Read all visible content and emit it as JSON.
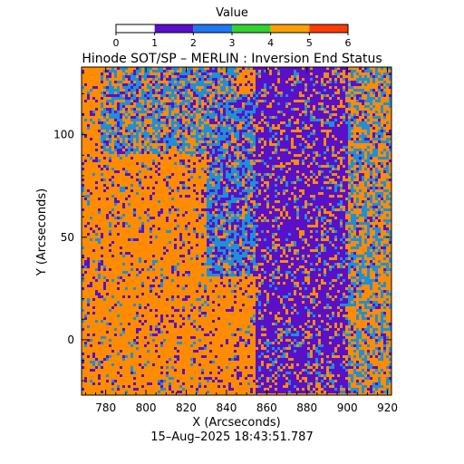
{
  "chart_data": {
    "type": "heatmap",
    "title": "Hinode SOT/SP – MERLIN : Inversion End Status",
    "xlabel": "X (Arcseconds)",
    "ylabel": "Y (Arcseconds)",
    "footer": "15–Aug–2025 18:43:51.787",
    "colorbar": {
      "title": "Value",
      "range": [
        0,
        6
      ],
      "ticks": [
        0,
        1,
        2,
        3,
        4,
        5,
        6
      ],
      "tick_labels": [
        "0",
        "1",
        "2",
        "3",
        "4",
        "5",
        "6"
      ],
      "bands": [
        {
          "from": 0,
          "to": 1,
          "color": "#ffffff"
        },
        {
          "from": 1,
          "to": 2,
          "color": "#5a10c8"
        },
        {
          "from": 2,
          "to": 3,
          "color": "#1e78f0"
        },
        {
          "from": 3,
          "to": 4,
          "color": "#32d232"
        },
        {
          "from": 4,
          "to": 5,
          "color": "#ffa000"
        },
        {
          "from": 5,
          "to": 6,
          "color": "#ff3c00"
        }
      ]
    },
    "xlim": [
      768,
      922
    ],
    "ylim": [
      -27,
      133
    ],
    "x_ticks": [
      780,
      800,
      820,
      840,
      860,
      880,
      900,
      920
    ],
    "x_tick_labels": [
      "780",
      "800",
      "820",
      "840",
      "860",
      "880",
      "900",
      "920"
    ],
    "y_ticks": [
      0,
      50,
      100
    ],
    "y_tick_labels": [
      "0",
      "50",
      "100"
    ],
    "value_colors": {
      "1": "#5a10c8",
      "2": "#1e90d8",
      "4": "#ff8c00"
    },
    "regions": [
      {
        "x": [
          768,
          830
        ],
        "y": [
          -27,
          90
        ],
        "dominant": 4,
        "mix": {
          "4": 0.82,
          "1": 0.12,
          "2": 0.06
        }
      },
      {
        "x": [
          778,
          845
        ],
        "y": [
          90,
          133
        ],
        "dominant": 2,
        "mix": {
          "2": 0.45,
          "4": 0.35,
          "1": 0.2
        }
      },
      {
        "x": [
          830,
          875
        ],
        "y": [
          30,
          120
        ],
        "dominant": 2,
        "mix": {
          "2": 0.45,
          "1": 0.35,
          "4": 0.2
        }
      },
      {
        "x": [
          855,
          900
        ],
        "y": [
          -27,
          133
        ],
        "dominant": 1,
        "mix": {
          "1": 0.7,
          "4": 0.2,
          "2": 0.1
        }
      },
      {
        "x": [
          900,
          922
        ],
        "y": [
          -27,
          133
        ],
        "dominant": 4,
        "mix": {
          "4": 0.55,
          "2": 0.35,
          "1": 0.1
        }
      }
    ]
  }
}
